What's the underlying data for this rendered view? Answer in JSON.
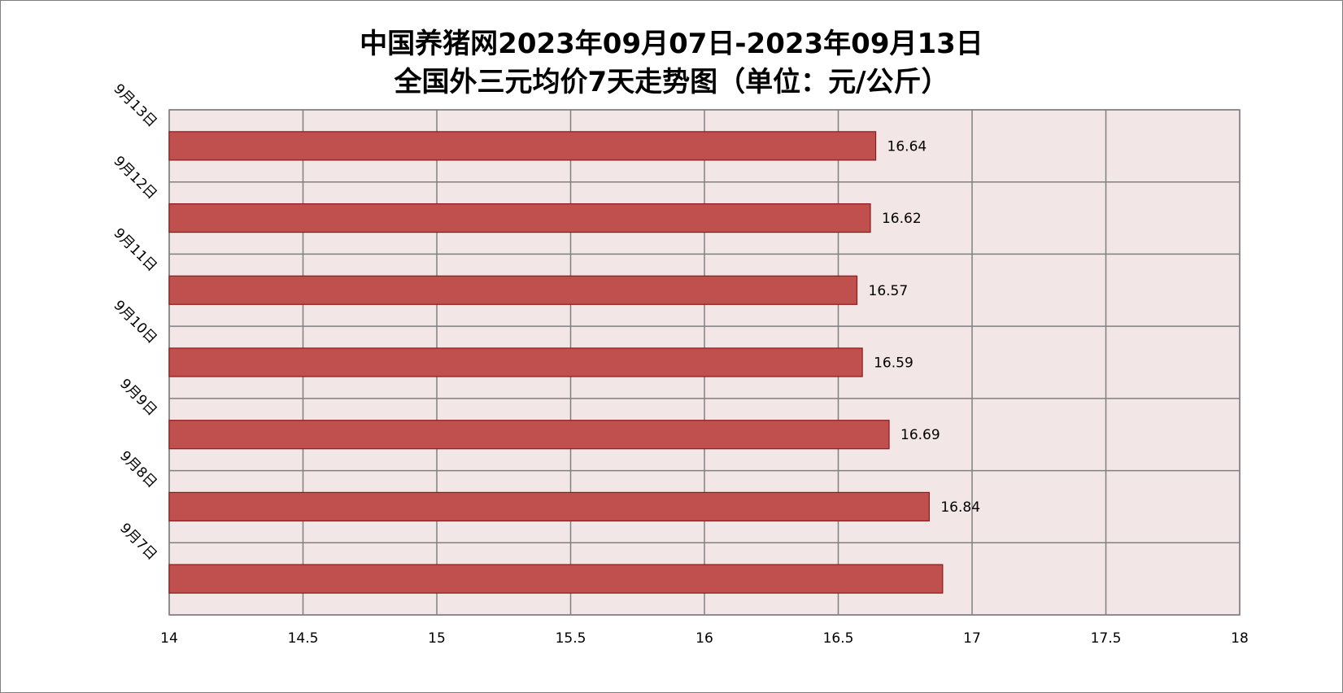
{
  "chart_data": {
    "type": "bar",
    "orientation": "horizontal",
    "title_line1": "中国养猪网2023年09月07日-2023年09月13日",
    "title_line2": "全国外三元均价7天走势图（单位：元/公斤）",
    "categories": [
      "9月13日",
      "9月12日",
      "9月11日",
      "9月10日",
      "9月9日",
      "9月8日",
      "9月7日"
    ],
    "values": [
      16.64,
      16.62,
      16.57,
      16.59,
      16.69,
      16.84,
      16.89
    ],
    "data_labels": [
      "16.64",
      "16.62",
      "16.57",
      "16.59",
      "16.69",
      "16.84",
      ""
    ],
    "x_ticks": [
      "14",
      "14.5",
      "15",
      "15.5",
      "16",
      "16.5",
      "17",
      "17.5",
      "18"
    ],
    "xlim": [
      14,
      18
    ],
    "grid": true,
    "colors": {
      "bar_fill": "#c0504d",
      "bar_stroke": "#8b1a1a",
      "plot_background": "#f2e6e6",
      "grid_line": "#808080"
    }
  }
}
